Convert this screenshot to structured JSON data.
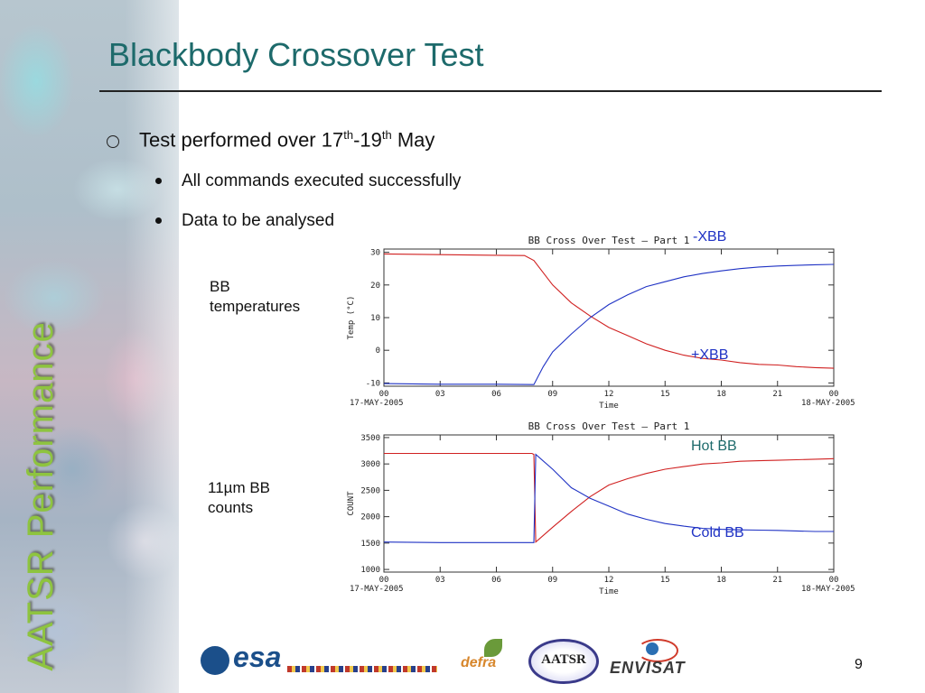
{
  "sidebar": {
    "vertical_title": "AATSR Performance"
  },
  "slide": {
    "title": "Blackbody Crossover Test",
    "bullet_main": {
      "text": "Test performed over 17",
      "sup1": "th",
      "mid": "-19",
      "sup2": "th",
      "end": " May"
    },
    "sub_bullets": [
      "All commands executed successfully",
      "Data to be analysed"
    ],
    "left_labels": {
      "temps": [
        "BB",
        "temperatures"
      ],
      "counts": [
        "11µm BB",
        "counts"
      ]
    },
    "annotations": {
      "minus_xbb": "-XBB",
      "plus_xbb": "+XBB",
      "hot_bb": "Hot BB",
      "cold_bb": "Cold BB"
    },
    "page_number": "9",
    "colors": {
      "title": "#1d6a6b",
      "vertical_title": "#8ec43f",
      "series_red": "#d02020",
      "series_blue": "#1f32c4"
    }
  },
  "footer": {
    "logos": [
      {
        "name": "esa-logo",
        "text": "esa"
      },
      {
        "name": "defra-logo",
        "text": "defra"
      },
      {
        "name": "aatsr-logo",
        "text": "AATSR"
      },
      {
        "name": "envisat-logo",
        "text": "ENVISAT"
      }
    ]
  },
  "chart_data": [
    {
      "type": "line",
      "title": "BB Cross Over Test – Part 1",
      "xlabel": "Time",
      "ylabel": "Temp (°C)",
      "x_ticks": [
        "00",
        "03",
        "06",
        "09",
        "12",
        "15",
        "18",
        "21",
        "00"
      ],
      "x_start_label": "17-MAY-2005",
      "x_end_label": "18-MAY-2005",
      "xlim": [
        0,
        24
      ],
      "ylim": [
        -11,
        31
      ],
      "y_ticks": [
        -10,
        0,
        10,
        20,
        30
      ],
      "series": [
        {
          "color": "#d02020",
          "x": [
            0,
            3,
            6,
            7.5,
            8,
            9,
            10,
            11,
            12,
            13,
            14,
            15,
            16,
            17,
            18,
            19,
            20,
            21,
            22,
            23,
            24
          ],
          "values": [
            29.5,
            29.3,
            29.1,
            29.0,
            27.5,
            20,
            14.5,
            10.5,
            7,
            4.5,
            2,
            0,
            -1.5,
            -2.5,
            -3,
            -3.8,
            -4.3,
            -4.5,
            -5,
            -5.3,
            -5.5
          ]
        },
        {
          "color": "#1f32c4",
          "x": [
            0,
            3,
            6,
            8,
            8.5,
            9,
            10,
            11,
            12,
            13,
            14,
            15,
            16,
            17,
            18,
            19,
            20,
            21,
            22,
            23,
            24
          ],
          "values": [
            -10.2,
            -10.4,
            -10.4,
            -10.5,
            -5,
            -0.5,
            5,
            10,
            14,
            17,
            19.5,
            21,
            22.5,
            23.5,
            24.3,
            25,
            25.5,
            25.8,
            26,
            26.2,
            26.3
          ]
        }
      ]
    },
    {
      "type": "line",
      "title": "BB Cross Over Test – Part 1",
      "xlabel": "Time",
      "ylabel": "COUNT",
      "x_ticks": [
        "00",
        "03",
        "06",
        "09",
        "12",
        "15",
        "18",
        "21",
        "00"
      ],
      "x_start_label": "17-MAY-2005",
      "x_end_label": "18-MAY-2005",
      "xlim": [
        0,
        24
      ],
      "ylim": [
        950,
        3550
      ],
      "y_ticks": [
        1000,
        1500,
        2000,
        2500,
        3000,
        3500
      ],
      "series": [
        {
          "color": "#d02020",
          "x": [
            0,
            3,
            6,
            7.9,
            8.0,
            8.1,
            9,
            10,
            11,
            12,
            13,
            14,
            15,
            16,
            17,
            18,
            19,
            20,
            21,
            22,
            23,
            24
          ],
          "values": [
            3200,
            3200,
            3200,
            3200,
            3180,
            1520,
            1800,
            2100,
            2380,
            2600,
            2720,
            2820,
            2900,
            2950,
            3000,
            3020,
            3050,
            3060,
            3070,
            3080,
            3090,
            3100
          ]
        },
        {
          "color": "#1f32c4",
          "x": [
            0,
            3,
            6,
            7.9,
            8.0,
            8.1,
            9,
            10,
            11,
            12,
            13,
            14,
            15,
            16,
            17,
            18,
            19,
            20,
            21,
            22,
            23,
            24
          ],
          "values": [
            1520,
            1510,
            1510,
            1510,
            1510,
            3180,
            2900,
            2550,
            2350,
            2200,
            2050,
            1950,
            1870,
            1820,
            1780,
            1760,
            1750,
            1745,
            1740,
            1730,
            1720,
            1720
          ]
        }
      ]
    }
  ]
}
